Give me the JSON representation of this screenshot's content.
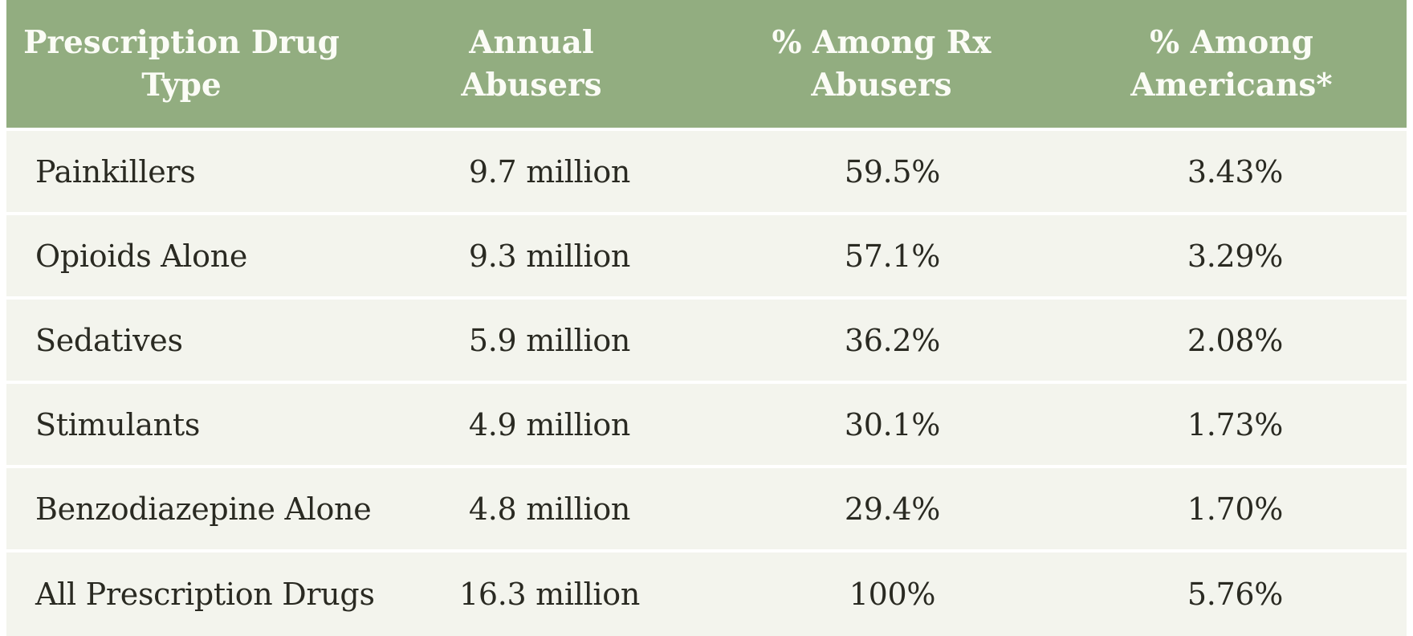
{
  "colors": {
    "header_bg": "#92ad80",
    "header_text": "#fbfcf6",
    "row_bg": "#f3f4ed",
    "body_text": "#2a2a22",
    "gap_white": "#ffffff"
  },
  "table": {
    "headers": [
      {
        "line1": "Prescription Drug",
        "line2": "Type"
      },
      {
        "line1": "Annual",
        "line2": "Abusers"
      },
      {
        "line1": "% Among Rx",
        "line2": "Abusers"
      },
      {
        "line1": "% Among",
        "line2": "Americans*"
      }
    ],
    "rows": [
      {
        "drug_type": "Painkillers",
        "annual_abusers": "9.7 million",
        "pct_among_rx_abusers": "59.5%",
        "pct_among_americans": "3.43%"
      },
      {
        "drug_type": "Opioids Alone",
        "annual_abusers": "9.3 million",
        "pct_among_rx_abusers": "57.1%",
        "pct_among_americans": "3.29%"
      },
      {
        "drug_type": "Sedatives",
        "annual_abusers": "5.9 million",
        "pct_among_rx_abusers": "36.2%",
        "pct_among_americans": "2.08%"
      },
      {
        "drug_type": "Stimulants",
        "annual_abusers": "4.9 million",
        "pct_among_rx_abusers": "30.1%",
        "pct_among_americans": "1.73%"
      },
      {
        "drug_type": "Benzodiazepine Alone",
        "annual_abusers": "4.8 million",
        "pct_among_rx_abusers": "29.4%",
        "pct_among_americans": "1.70%"
      },
      {
        "drug_type": "All Prescription Drugs",
        "annual_abusers": "16.3 million",
        "pct_among_rx_abusers": "100%",
        "pct_among_americans": "5.76%"
      }
    ]
  },
  "chart_data": {
    "type": "table",
    "title": "",
    "columns": [
      "Prescription Drug Type",
      "Annual Abusers",
      "% Among Rx Abusers",
      "% Among Americans*"
    ],
    "categories": [
      "Painkillers",
      "Opioids Alone",
      "Sedatives",
      "Stimulants",
      "Benzodiazepine Alone",
      "All Prescription Drugs"
    ],
    "series": [
      {
        "name": "Annual Abusers (millions)",
        "values": [
          9.7,
          9.3,
          5.9,
          4.9,
          4.8,
          16.3
        ]
      },
      {
        "name": "% Among Rx Abusers",
        "values": [
          59.5,
          57.1,
          36.2,
          30.1,
          29.4,
          100
        ]
      },
      {
        "name": "% Among Americans*",
        "values": [
          3.43,
          3.29,
          2.08,
          1.73,
          1.7,
          5.76
        ]
      }
    ]
  }
}
